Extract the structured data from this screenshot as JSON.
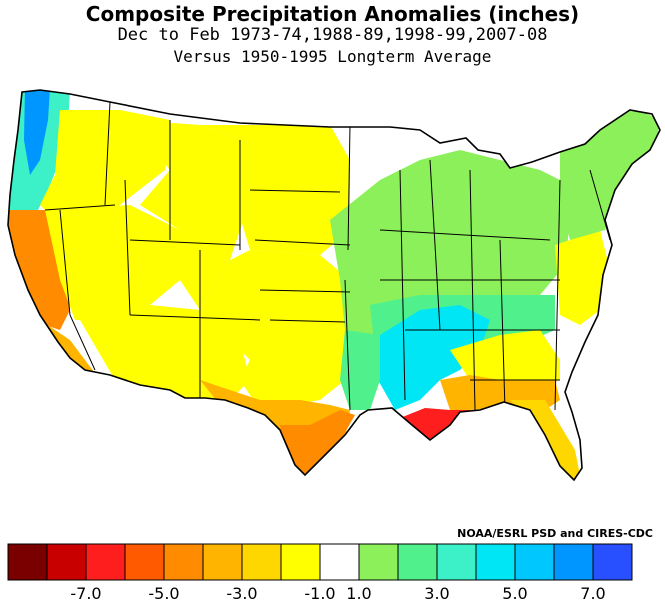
{
  "title": "Composite Precipitation Anomalies (inches)",
  "subtitle1": "Dec to Feb  1973-74,1988-89,1998-99,2007-08",
  "subtitle2": "Versus 1950-1995 Longterm Average",
  "credit": "NOAA/ESRL PSD and CIRES-CDC",
  "colors": {
    "state_border": "#000000",
    "water": "#ffffff"
  },
  "legend": {
    "bins": [
      {
        "color": "#7a0000"
      },
      {
        "color": "#c80000"
      },
      {
        "color": "#ff1e1e"
      },
      {
        "color": "#ff5a00"
      },
      {
        "color": "#ff8c00"
      },
      {
        "color": "#ffb400"
      },
      {
        "color": "#ffd700"
      },
      {
        "color": "#ffff00"
      },
      {
        "color": "#ffffff"
      },
      {
        "color": "#8cf05a"
      },
      {
        "color": "#50f08c"
      },
      {
        "color": "#3cf0c8"
      },
      {
        "color": "#00e6f5"
      },
      {
        "color": "#00c8ff"
      },
      {
        "color": "#0096ff"
      },
      {
        "color": "#2850ff"
      }
    ],
    "tick_labels": [
      "-7.0",
      "-5.0",
      "-3.0",
      "-1.0",
      "1.0",
      "3.0",
      "5.0",
      "7.0"
    ],
    "tick_positions": [
      2,
      4,
      6,
      8,
      9,
      11,
      13,
      15
    ]
  },
  "regions": [
    {
      "name": "pacific-northwest-coast",
      "color": "#3cf0c8"
    },
    {
      "name": "puget-sound",
      "color": "#0096ff"
    },
    {
      "name": "california-north",
      "color": "#ff8c00"
    },
    {
      "name": "california-south",
      "color": "#ffb400"
    },
    {
      "name": "great-basin",
      "color": "#ffff00"
    },
    {
      "name": "southwest",
      "color": "#ffff00"
    },
    {
      "name": "rockies",
      "color": "#ffff00"
    },
    {
      "name": "northern-plains",
      "color": "#ffff00"
    },
    {
      "name": "southern-plains",
      "color": "#ffff00"
    },
    {
      "name": "texas-south",
      "color": "#ffb400"
    },
    {
      "name": "texas-coast",
      "color": "#ff8c00"
    },
    {
      "name": "ohio-valley",
      "color": "#8cf05a"
    },
    {
      "name": "tennessee-valley",
      "color": "#50f08c"
    },
    {
      "name": "lower-mississippi",
      "color": "#00e6f5"
    },
    {
      "name": "gulf-coast-louisiana",
      "color": "#ff1e1e"
    },
    {
      "name": "southeast-coast",
      "color": "#ffb400"
    },
    {
      "name": "florida",
      "color": "#ffd700"
    },
    {
      "name": "new-england",
      "color": "#8cf05a"
    }
  ]
}
